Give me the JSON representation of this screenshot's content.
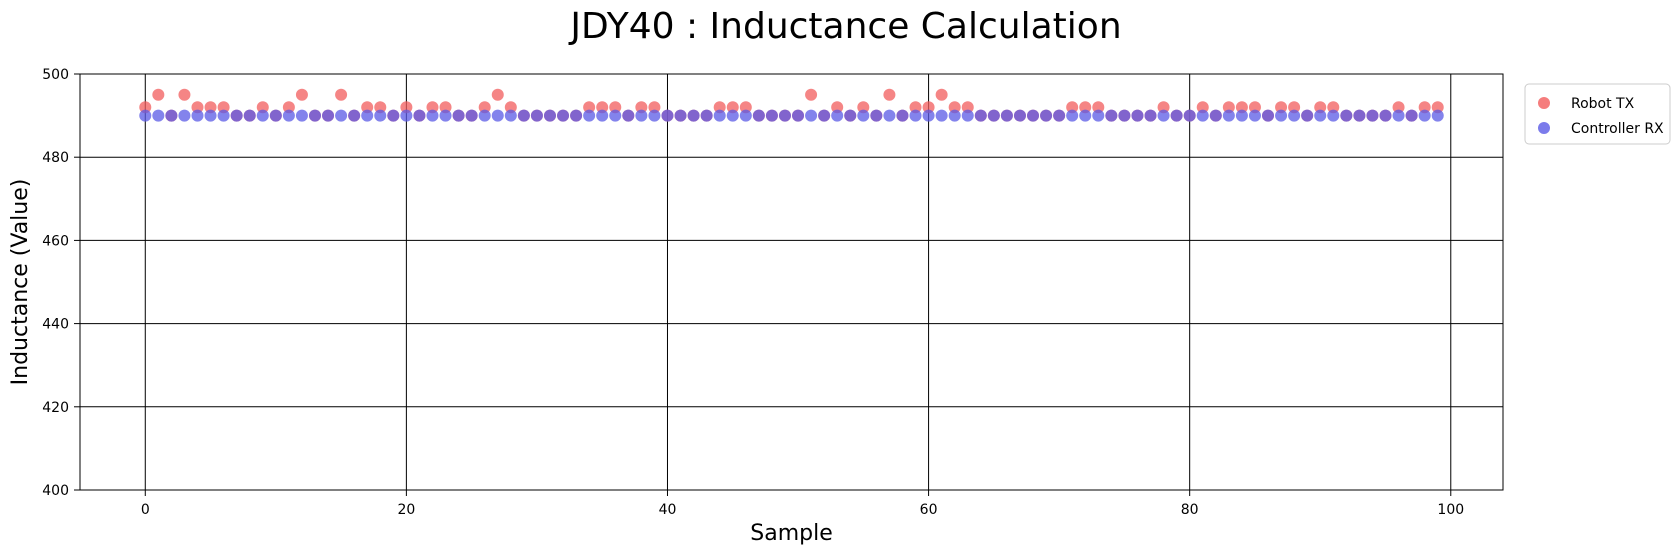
{
  "chart_data": {
    "type": "scatter",
    "title": "JDY40 : Inductance Calculation",
    "xlabel": "Sample",
    "ylabel": "Inductance (Value)",
    "xlim": [
      -5,
      104
    ],
    "ylim": [
      400,
      500
    ],
    "xticks": [
      0,
      20,
      40,
      60,
      80,
      100
    ],
    "yticks": [
      400,
      420,
      440,
      460,
      480,
      500
    ],
    "grid": true,
    "legend_position": "outside-top-right",
    "series": [
      {
        "name": "Robot TX",
        "color": "#f25c5c",
        "x": [
          0,
          1,
          2,
          3,
          4,
          5,
          6,
          7,
          8,
          9,
          10,
          11,
          12,
          13,
          14,
          15,
          16,
          17,
          18,
          19,
          20,
          21,
          22,
          23,
          24,
          25,
          26,
          27,
          28,
          29,
          30,
          31,
          32,
          33,
          34,
          35,
          36,
          37,
          38,
          39,
          40,
          41,
          42,
          43,
          44,
          45,
          46,
          47,
          48,
          49,
          50,
          51,
          52,
          53,
          54,
          55,
          56,
          57,
          58,
          59,
          60,
          61,
          62,
          63,
          64,
          65,
          66,
          67,
          68,
          69,
          70,
          71,
          72,
          73,
          74,
          75,
          76,
          77,
          78,
          79,
          80,
          81,
          82,
          83,
          84,
          85,
          86,
          87,
          88,
          89,
          90,
          91,
          92,
          93,
          94,
          95,
          96,
          97,
          98,
          99
        ],
        "y": [
          492,
          495,
          490,
          495,
          492,
          492,
          492,
          490,
          490,
          492,
          490,
          492,
          495,
          490,
          490,
          495,
          490,
          492,
          492,
          490,
          492,
          490,
          492,
          492,
          490,
          490,
          492,
          495,
          492,
          490,
          490,
          490,
          490,
          490,
          492,
          492,
          492,
          490,
          492,
          492,
          490,
          490,
          490,
          490,
          492,
          492,
          492,
          490,
          490,
          490,
          490,
          495,
          490,
          492,
          490,
          492,
          490,
          495,
          490,
          492,
          492,
          495,
          492,
          492,
          490,
          490,
          490,
          490,
          490,
          490,
          490,
          492,
          492,
          492,
          490,
          490,
          490,
          490,
          492,
          490,
          490,
          492,
          490,
          492,
          492,
          492,
          490,
          492,
          492,
          490,
          492,
          492,
          490,
          490,
          490,
          490,
          492,
          490,
          492,
          492
        ]
      },
      {
        "name": "Controller RX",
        "color": "#5a5ae6",
        "x": [
          0,
          1,
          2,
          3,
          4,
          5,
          6,
          7,
          8,
          9,
          10,
          11,
          12,
          13,
          14,
          15,
          16,
          17,
          18,
          19,
          20,
          21,
          22,
          23,
          24,
          25,
          26,
          27,
          28,
          29,
          30,
          31,
          32,
          33,
          34,
          35,
          36,
          37,
          38,
          39,
          40,
          41,
          42,
          43,
          44,
          45,
          46,
          47,
          48,
          49,
          50,
          51,
          52,
          53,
          54,
          55,
          56,
          57,
          58,
          59,
          60,
          61,
          62,
          63,
          64,
          65,
          66,
          67,
          68,
          69,
          70,
          71,
          72,
          73,
          74,
          75,
          76,
          77,
          78,
          79,
          80,
          81,
          82,
          83,
          84,
          85,
          86,
          87,
          88,
          89,
          90,
          91,
          92,
          93,
          94,
          95,
          96,
          97,
          98,
          99
        ],
        "y": [
          490,
          490,
          490,
          490,
          490,
          490,
          490,
          490,
          490,
          490,
          490,
          490,
          490,
          490,
          490,
          490,
          490,
          490,
          490,
          490,
          490,
          490,
          490,
          490,
          490,
          490,
          490,
          490,
          490,
          490,
          490,
          490,
          490,
          490,
          490,
          490,
          490,
          490,
          490,
          490,
          490,
          490,
          490,
          490,
          490,
          490,
          490,
          490,
          490,
          490,
          490,
          490,
          490,
          490,
          490,
          490,
          490,
          490,
          490,
          490,
          490,
          490,
          490,
          490,
          490,
          490,
          490,
          490,
          490,
          490,
          490,
          490,
          490,
          490,
          490,
          490,
          490,
          490,
          490,
          490,
          490,
          490,
          490,
          490,
          490,
          490,
          490,
          490,
          490,
          490,
          490,
          490,
          490,
          490,
          490,
          490,
          490,
          490,
          490,
          490
        ]
      }
    ]
  }
}
